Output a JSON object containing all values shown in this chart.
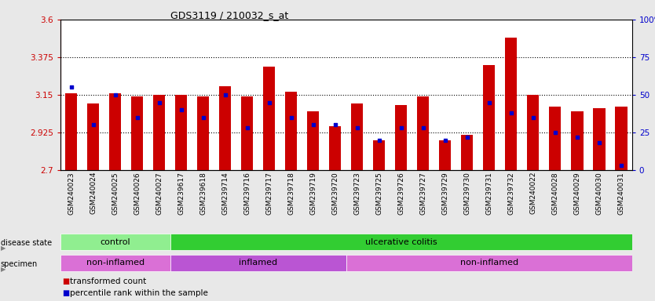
{
  "title": "GDS3119 / 210032_s_at",
  "samples": [
    "GSM240023",
    "GSM240024",
    "GSM240025",
    "GSM240026",
    "GSM240027",
    "GSM239617",
    "GSM239618",
    "GSM239714",
    "GSM239716",
    "GSM239717",
    "GSM239718",
    "GSM239719",
    "GSM239720",
    "GSM239723",
    "GSM239725",
    "GSM239726",
    "GSM239727",
    "GSM239729",
    "GSM239730",
    "GSM239731",
    "GSM239732",
    "GSM240022",
    "GSM240028",
    "GSM240029",
    "GSM240030",
    "GSM240031"
  ],
  "transformed_count": [
    3.16,
    3.1,
    3.16,
    3.14,
    3.15,
    3.15,
    3.14,
    3.2,
    3.14,
    3.32,
    3.17,
    3.05,
    2.96,
    3.1,
    2.88,
    3.09,
    3.14,
    2.88,
    2.91,
    3.33,
    3.49,
    3.15,
    3.08,
    3.05,
    3.07,
    3.08
  ],
  "percentile_rank": [
    55,
    30,
    50,
    35,
    45,
    40,
    35,
    50,
    28,
    45,
    35,
    30,
    30,
    28,
    20,
    28,
    28,
    20,
    22,
    45,
    38,
    35,
    25,
    22,
    18,
    3
  ],
  "bar_color": "#cc0000",
  "dot_color": "#0000cc",
  "ylim_left": [
    2.7,
    3.6
  ],
  "ylim_right": [
    0,
    100
  ],
  "yticks_left": [
    2.7,
    2.925,
    3.15,
    3.375,
    3.6
  ],
  "yticks_right": [
    0,
    25,
    50,
    75,
    100
  ],
  "hline_values": [
    2.925,
    3.15,
    3.375
  ],
  "disease_state": [
    {
      "label": "control",
      "start": 0,
      "end": 5,
      "color": "#90ee90"
    },
    {
      "label": "ulcerative colitis",
      "start": 5,
      "end": 26,
      "color": "#32cd32"
    }
  ],
  "specimen": [
    {
      "label": "non-inflamed",
      "start": 0,
      "end": 5,
      "color": "#da70d6"
    },
    {
      "label": "inflamed",
      "start": 5,
      "end": 13,
      "color": "#ba55d3"
    },
    {
      "label": "non-inflamed",
      "start": 13,
      "end": 26,
      "color": "#da70d6"
    }
  ],
  "bar_width": 0.55,
  "background_color": "#e8e8e8",
  "plot_bg_color": "#ffffff",
  "left_label_color": "#cc0000",
  "right_label_color": "#0000cc",
  "legend_items": [
    {
      "label": "transformed count",
      "color": "#cc0000"
    },
    {
      "label": "percentile rank within the sample",
      "color": "#0000cc"
    }
  ],
  "n_samples": 26
}
